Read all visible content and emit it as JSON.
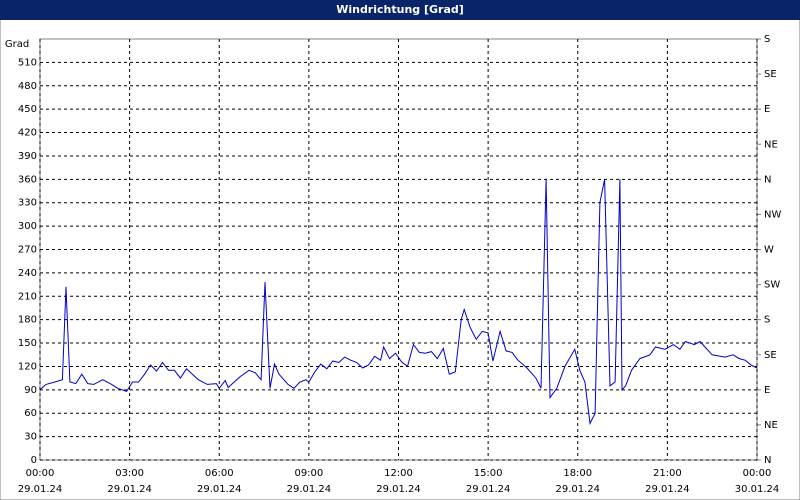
{
  "chart_data": {
    "type": "line",
    "title": "Windrichtung [Grad]",
    "y_label": "Grad",
    "xlim": [
      0,
      24
    ],
    "xticks": [
      {
        "value": 0,
        "label": "00:00",
        "date": "29.01.24"
      },
      {
        "value": 3,
        "label": "03:00",
        "date": "29.01.24"
      },
      {
        "value": 6,
        "label": "06:00",
        "date": "29.01.24"
      },
      {
        "value": 9,
        "label": "09:00",
        "date": "29.01.24"
      },
      {
        "value": 12,
        "label": "12:00",
        "date": "29.01.24"
      },
      {
        "value": 15,
        "label": "15:00",
        "date": "29.01.24"
      },
      {
        "value": 18,
        "label": "18:00",
        "date": "29.01.24"
      },
      {
        "value": 21,
        "label": "21:00",
        "date": "29.01.24"
      },
      {
        "value": 24,
        "label": "00:00",
        "date": "30.01.24"
      }
    ],
    "ylim": [
      0,
      540
    ],
    "yticks": [
      0,
      30,
      60,
      90,
      120,
      150,
      180,
      210,
      240,
      270,
      300,
      330,
      360,
      390,
      420,
      450,
      480,
      510
    ],
    "y2lim": [
      0,
      540
    ],
    "y2ticks": [
      {
        "value": 0,
        "label": "N"
      },
      {
        "value": 45,
        "label": "NE"
      },
      {
        "value": 90,
        "label": "E"
      },
      {
        "value": 135,
        "label": "SE"
      },
      {
        "value": 180,
        "label": "S"
      },
      {
        "value": 225,
        "label": "SW"
      },
      {
        "value": 270,
        "label": "W"
      },
      {
        "value": 315,
        "label": "NW"
      },
      {
        "value": 360,
        "label": "N"
      },
      {
        "value": 405,
        "label": "NE"
      },
      {
        "value": 450,
        "label": "E"
      },
      {
        "value": 495,
        "label": "SE"
      },
      {
        "value": 540,
        "label": "S"
      }
    ],
    "grid": true,
    "x": [
      0,
      0.2,
      0.5,
      0.75,
      0.87,
      1.0,
      1.2,
      1.4,
      1.6,
      1.8,
      2.1,
      2.4,
      2.6,
      2.9,
      3.1,
      3.3,
      3.5,
      3.7,
      3.9,
      4.1,
      4.3,
      4.5,
      4.7,
      4.9,
      5.1,
      5.3,
      5.6,
      5.9,
      6.0,
      6.2,
      6.3,
      6.5,
      6.7,
      7.0,
      7.2,
      7.4,
      7.53,
      7.7,
      7.85,
      8.0,
      8.3,
      8.5,
      8.7,
      8.9,
      9.0,
      9.2,
      9.4,
      9.6,
      9.8,
      10.0,
      10.2,
      10.4,
      10.6,
      10.8,
      11.0,
      11.2,
      11.4,
      11.5,
      11.7,
      11.9,
      12.1,
      12.3,
      12.5,
      12.7,
      12.9,
      13.1,
      13.3,
      13.5,
      13.7,
      13.9,
      14.1,
      14.2,
      14.4,
      14.6,
      14.8,
      15.0,
      15.16,
      15.4,
      15.6,
      15.8,
      16.0,
      16.3,
      16.6,
      16.77,
      16.94,
      17.07,
      17.3,
      17.57,
      17.9,
      18.07,
      18.24,
      18.41,
      18.58,
      18.74,
      18.9,
      19.08,
      19.25,
      19.41,
      19.48,
      19.6,
      19.8,
      20.08,
      20.42,
      20.6,
      20.92,
      21.2,
      21.42,
      21.6,
      21.9,
      22.1,
      22.26,
      22.5,
      22.93,
      23.2,
      23.4,
      23.6,
      23.8,
      24
    ],
    "series": [
      {
        "color": "#0000cc",
        "values": [
          90,
          97,
          100,
          103,
          222,
          100,
          98,
          110,
          98,
          97,
          103,
          97,
          92,
          88,
          100,
          100,
          110,
          122,
          114,
          125,
          115,
          115,
          105,
          117,
          110,
          103,
          97,
          98,
          92,
          102,
          93,
          100,
          107,
          115,
          112,
          103,
          228,
          92,
          123,
          110,
          97,
          92,
          100,
          103,
          100,
          113,
          123,
          117,
          127,
          125,
          132,
          128,
          125,
          118,
          122,
          133,
          128,
          145,
          130,
          137,
          126,
          120,
          148,
          138,
          137,
          139,
          130,
          143,
          110,
          113,
          180,
          193,
          170,
          155,
          165,
          163,
          127,
          165,
          140,
          138,
          128,
          118,
          105,
          92,
          360,
          80,
          92,
          120,
          142,
          115,
          100,
          47,
          60,
          330,
          360,
          95,
          100,
          360,
          90,
          95,
          115,
          130,
          135,
          145,
          142,
          148,
          142,
          152,
          148,
          152,
          145,
          135,
          132,
          135,
          130,
          128,
          122,
          118
        ]
      }
    ]
  }
}
